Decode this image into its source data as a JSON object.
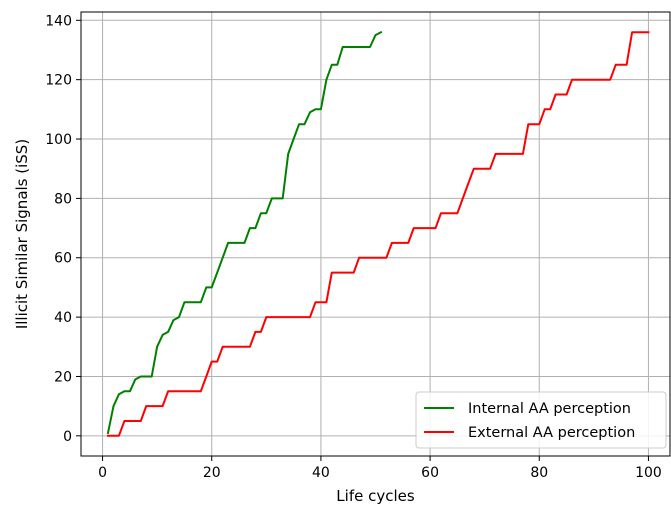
{
  "chart_data": {
    "type": "line",
    "xlabel": "Life cycles",
    "ylabel": "Illicit Similar Signals (iSS)",
    "xlim": [
      -3.95,
      103.95
    ],
    "ylim": [
      -6.8,
      142.8
    ],
    "xticks": [
      0,
      20,
      40,
      60,
      80,
      100
    ],
    "yticks": [
      0,
      20,
      40,
      60,
      80,
      100,
      120,
      140
    ],
    "grid": true,
    "legend_position": "lower-right",
    "series": [
      {
        "name": "Internal AA perception",
        "color": "#008000",
        "x": [
          1,
          2,
          3,
          4,
          5,
          6,
          7,
          8,
          9,
          10,
          11,
          12,
          13,
          14,
          15,
          16,
          17,
          18,
          19,
          20,
          21,
          22,
          23,
          24,
          25,
          26,
          27,
          28,
          29,
          30,
          31,
          32,
          33,
          34,
          35,
          36,
          37,
          38,
          39,
          40,
          41,
          42,
          43,
          44,
          45,
          46,
          47,
          48,
          49,
          50,
          51
        ],
        "y": [
          1,
          10,
          14,
          15,
          15,
          19,
          20,
          20,
          20,
          30,
          34,
          35,
          39,
          40,
          45,
          45,
          45,
          45,
          50,
          50,
          55,
          60,
          65,
          65,
          65,
          65,
          70,
          70,
          75,
          75,
          80,
          80,
          80,
          95,
          100,
          105,
          105,
          109,
          110,
          110,
          120,
          125,
          125,
          131,
          131,
          131,
          131,
          131,
          131,
          135,
          136
        ]
      },
      {
        "name": "External AA perception",
        "color": "#ff0000",
        "x": [
          1,
          2,
          3,
          4,
          5,
          6,
          7,
          8,
          9,
          10,
          11,
          12,
          13,
          14,
          15,
          16,
          17,
          18,
          19,
          20,
          21,
          22,
          23,
          24,
          25,
          26,
          27,
          28,
          29,
          30,
          31,
          32,
          33,
          34,
          35,
          36,
          37,
          38,
          39,
          40,
          41,
          42,
          43,
          44,
          45,
          46,
          47,
          48,
          49,
          50,
          51,
          52,
          53,
          54,
          55,
          56,
          57,
          58,
          59,
          60,
          61,
          62,
          63,
          64,
          65,
          66,
          67,
          68,
          69,
          70,
          71,
          72,
          73,
          74,
          75,
          76,
          77,
          78,
          79,
          80,
          81,
          82,
          83,
          84,
          85,
          86,
          87,
          88,
          89,
          90,
          91,
          92,
          93,
          94,
          95,
          96,
          97,
          98,
          99,
          100
        ],
        "y": [
          0,
          0,
          0,
          5,
          5,
          5,
          5,
          10,
          10,
          10,
          10,
          15,
          15,
          15,
          15,
          15,
          15,
          15,
          20,
          25,
          25,
          30,
          30,
          30,
          30,
          30,
          30,
          35,
          35,
          40,
          40,
          40,
          40,
          40,
          40,
          40,
          40,
          40,
          45,
          45,
          45,
          55,
          55,
          55,
          55,
          55,
          60,
          60,
          60,
          60,
          60,
          60,
          65,
          65,
          65,
          65,
          70,
          70,
          70,
          70,
          70,
          75,
          75,
          75,
          75,
          80,
          85,
          90,
          90,
          90,
          90,
          95,
          95,
          95,
          95,
          95,
          95,
          105,
          105,
          105,
          110,
          110,
          115,
          115,
          115,
          120,
          120,
          120,
          120,
          120,
          120,
          120,
          120,
          125,
          125,
          125,
          136,
          136,
          136,
          136
        ]
      }
    ]
  }
}
